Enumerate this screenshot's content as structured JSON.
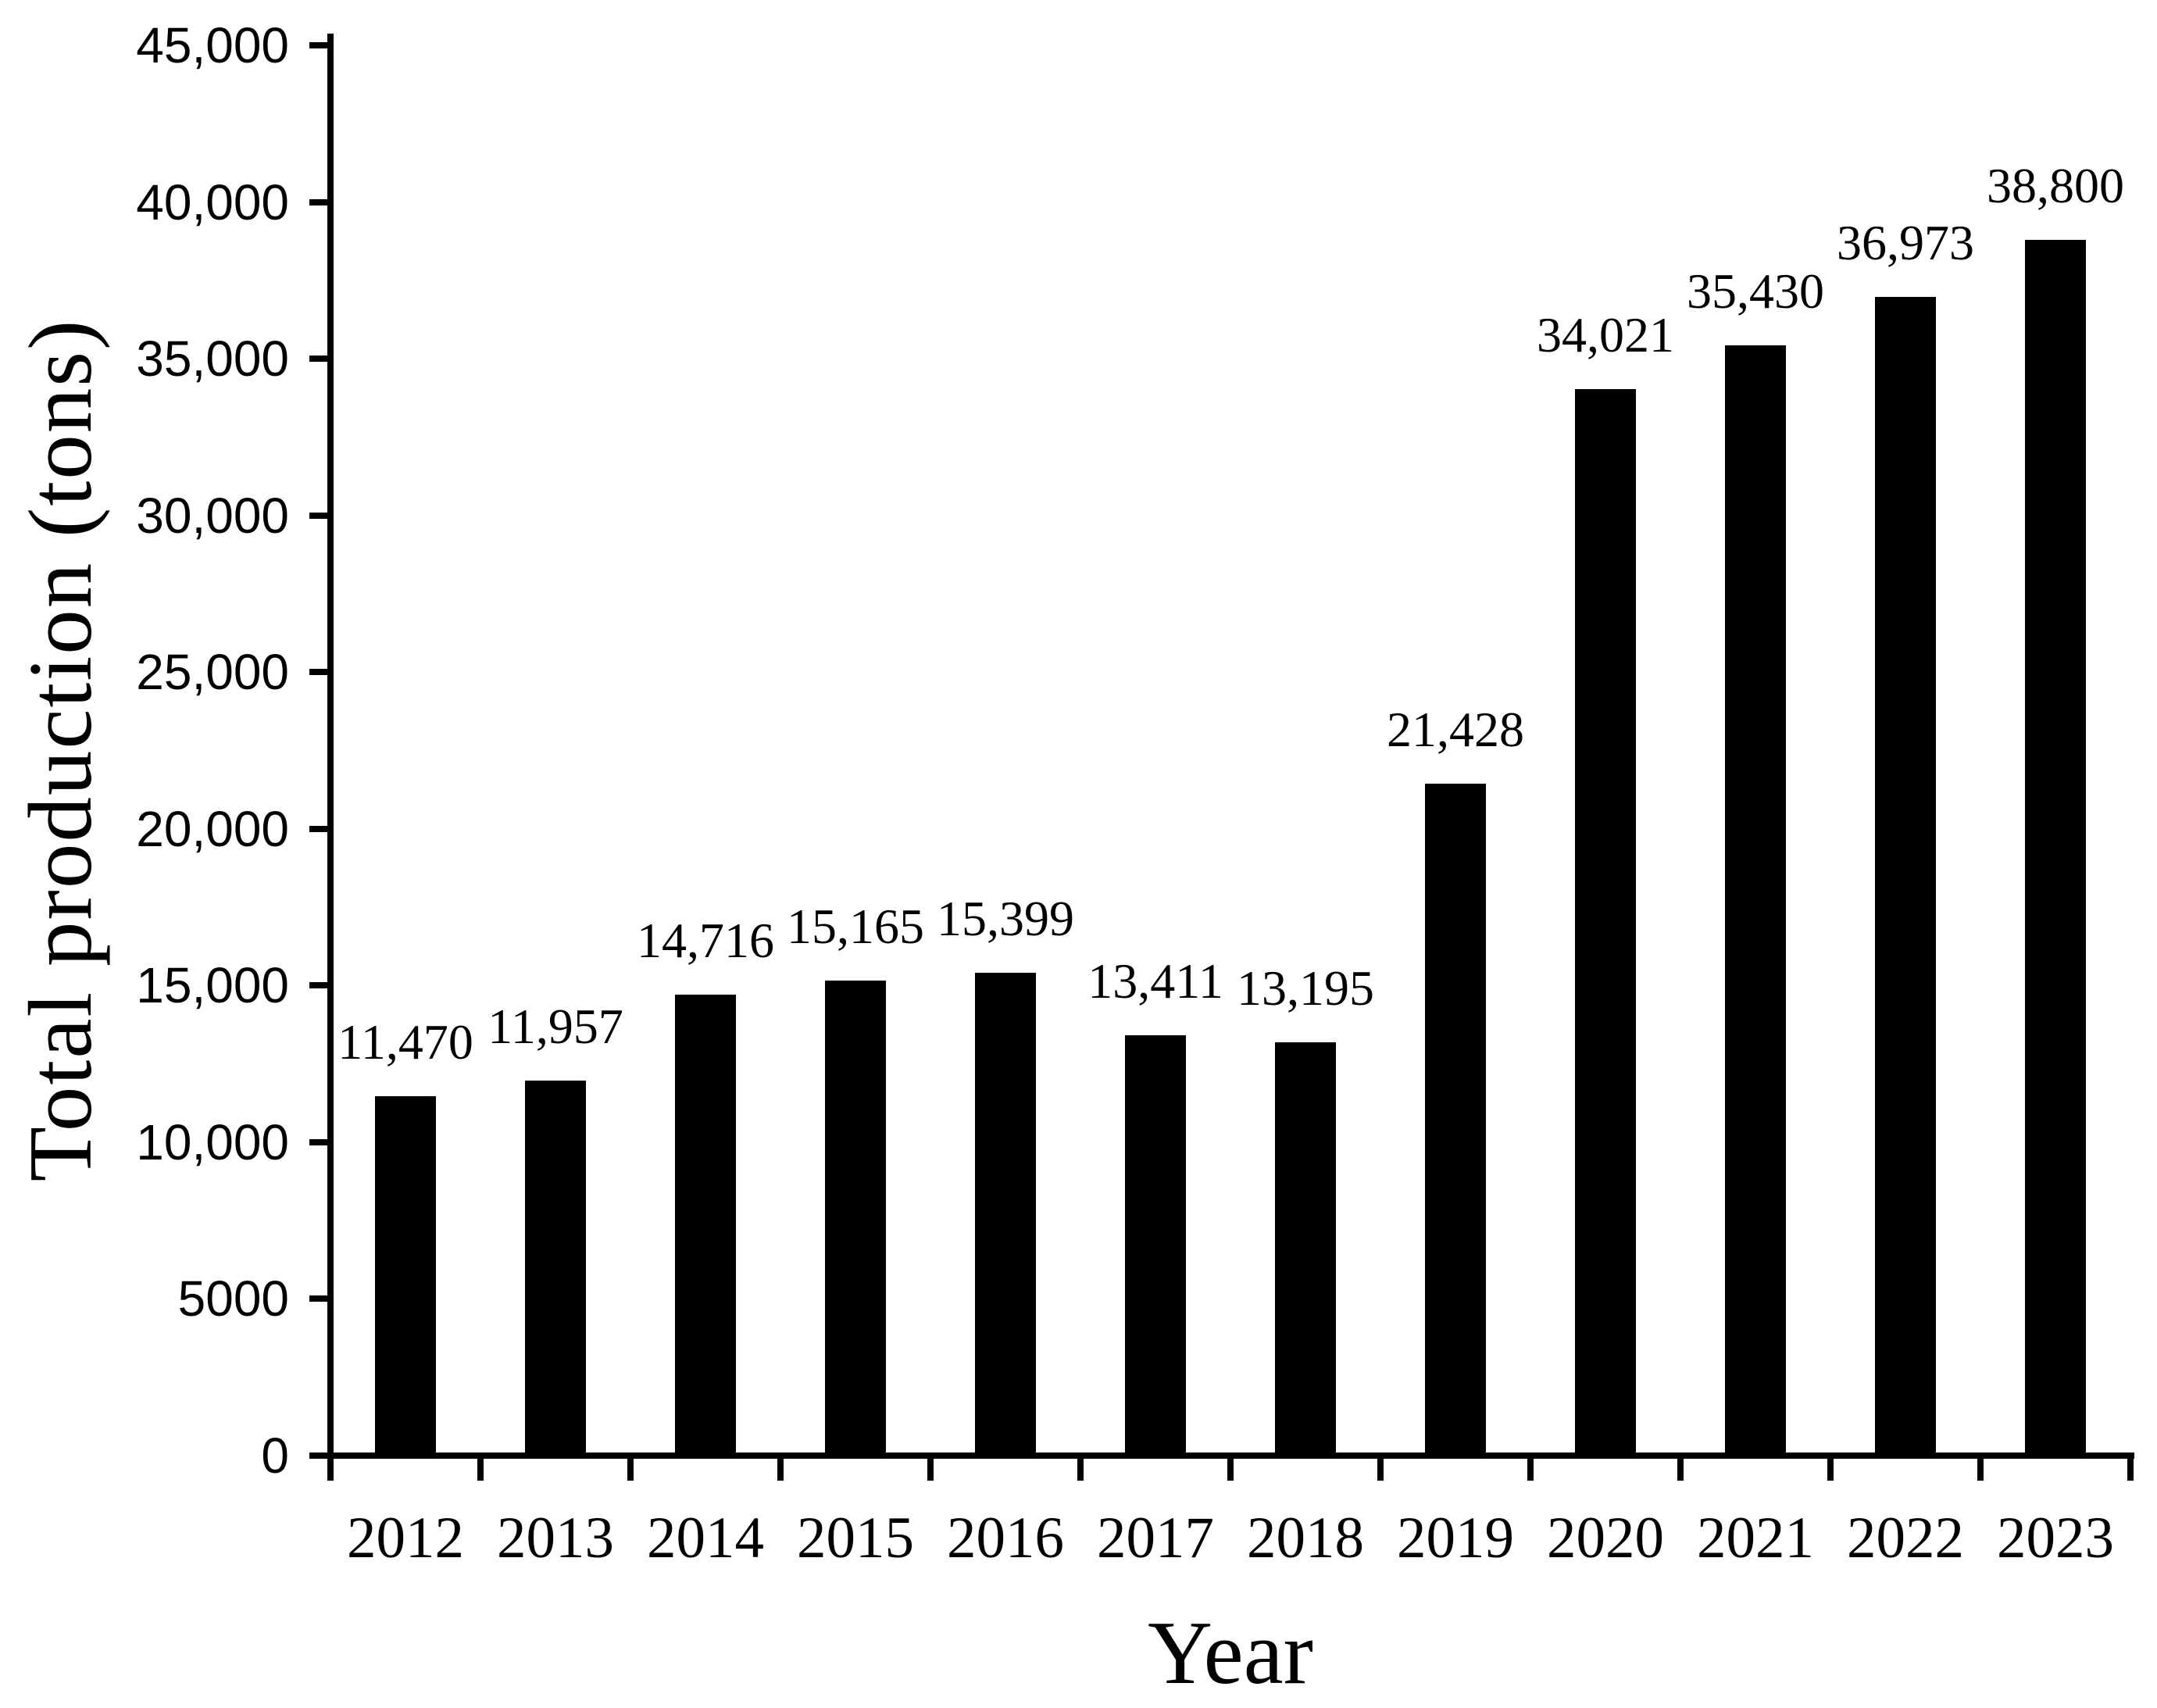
{
  "chart_data": {
    "type": "bar",
    "title": "",
    "xlabel": "Year",
    "ylabel": "Total production (tons)",
    "categories": [
      "2012",
      "2013",
      "2014",
      "2015",
      "2016",
      "2017",
      "2018",
      "2019",
      "2020",
      "2021",
      "2022",
      "2023"
    ],
    "values": [
      11470,
      11957,
      14716,
      15165,
      15399,
      13411,
      13195,
      21428,
      34021,
      35430,
      36973,
      38800
    ],
    "data_labels": [
      "11,470",
      "11,957",
      "14,716",
      "15,165",
      "15,399",
      "13,411",
      "13,195",
      "21,428",
      "34,021",
      "35,430",
      "36,973",
      "38,800"
    ],
    "ylim": [
      0,
      45000
    ],
    "y_ticks": [
      {
        "value": 0,
        "label": "0"
      },
      {
        "value": 5000,
        "label": "5000"
      },
      {
        "value": 10000,
        "label": "10,000"
      },
      {
        "value": 15000,
        "label": "15,000"
      },
      {
        "value": 20000,
        "label": "20,000"
      },
      {
        "value": 25000,
        "label": "25,000"
      },
      {
        "value": 30000,
        "label": "30,000"
      },
      {
        "value": 35000,
        "label": "35,000"
      },
      {
        "value": 40000,
        "label": "40,000"
      },
      {
        "value": 45000,
        "label": "45,000"
      }
    ],
    "bar_color": "#000000",
    "axis_color": "#000000",
    "background_color": "#ffffff",
    "grid": false,
    "legend_position": "none",
    "data_label_position": "outside-end"
  }
}
